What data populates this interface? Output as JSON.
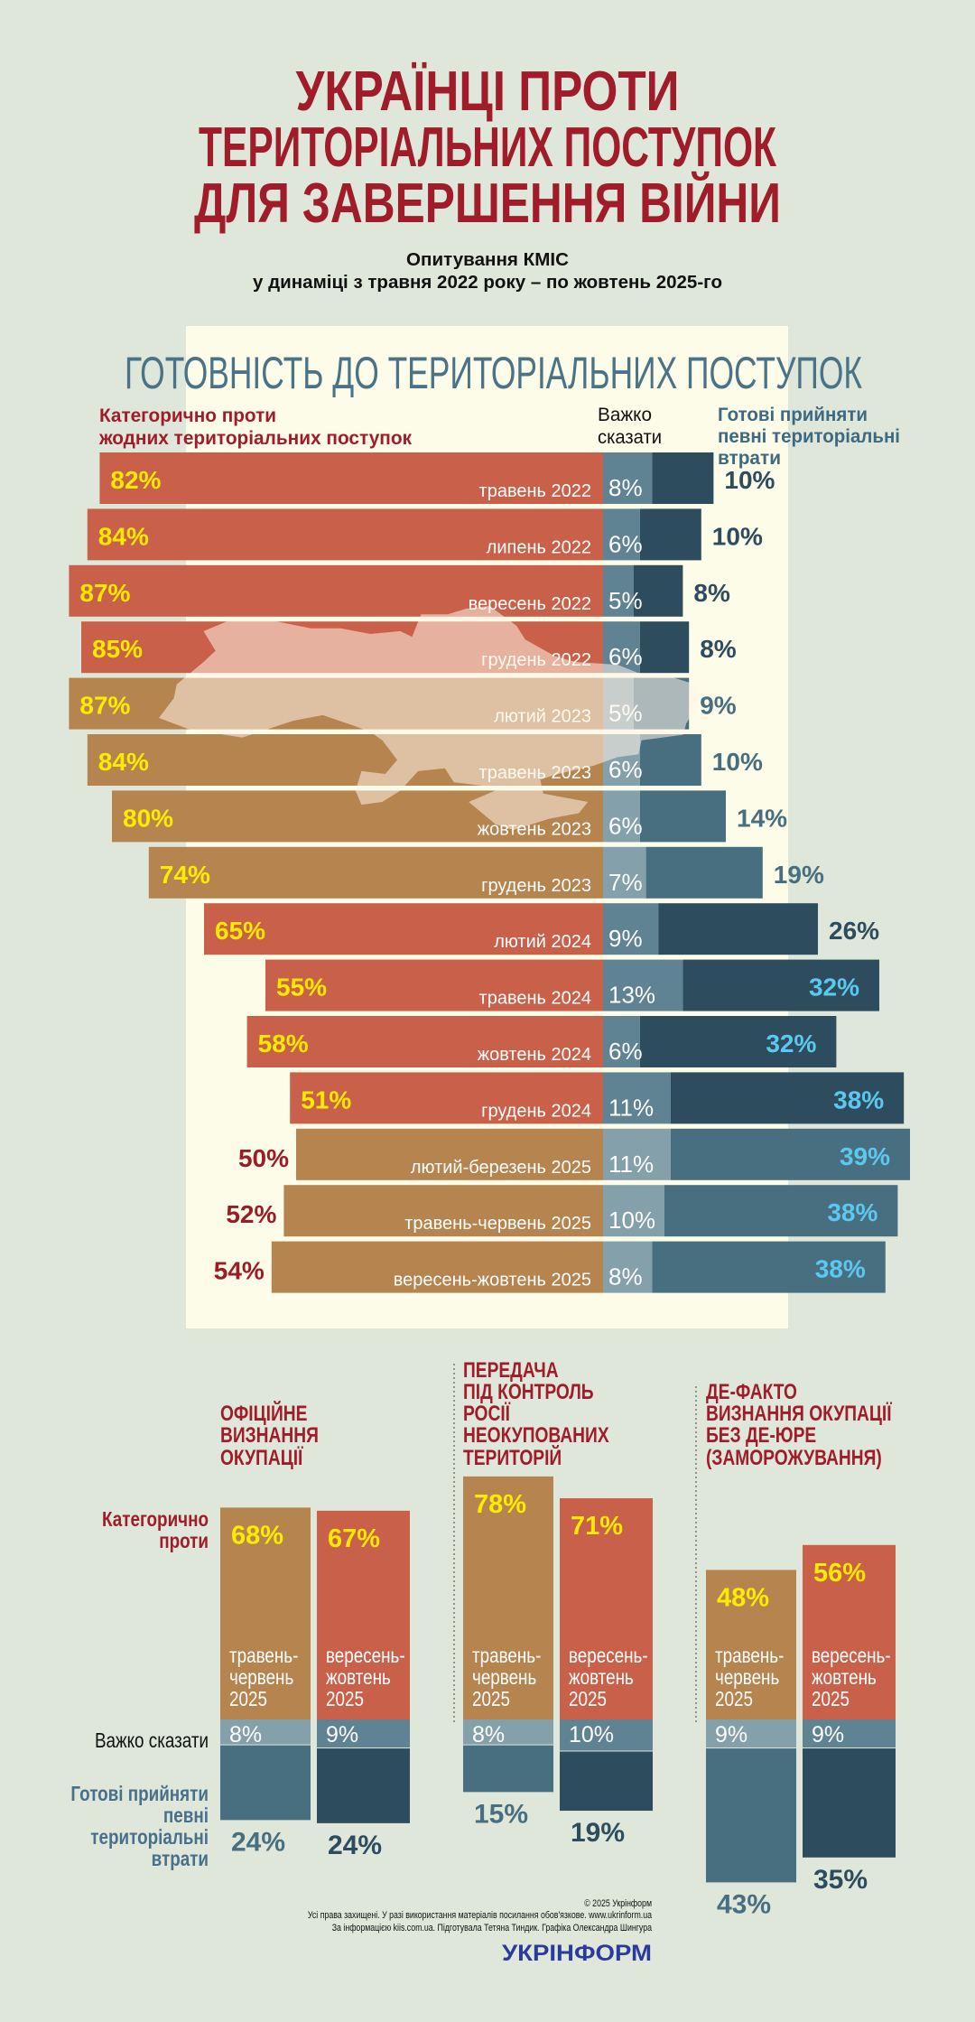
{
  "title": {
    "lines": [
      "УКРАЇНЦІ ПРОТИ",
      "ТЕРИТОРІАЛЬНИХ ПОСТУПОК",
      "ДЛЯ ЗАВЕРШЕННЯ ВІЙНИ"
    ]
  },
  "subtitle": {
    "lines": [
      "Опитування КМІС",
      "у динаміці  з травня 2022 року – по жовтень 2025-го"
    ]
  },
  "colors": {
    "background": "#dfe7da",
    "panel": "#fdfce9",
    "title_red": "#a11c2a",
    "heading_blue": "#4b7387",
    "against_a": "#c9614a",
    "against_b": "#b5844f",
    "hard_a": "#5f8393",
    "hard_b": "#84a0aa",
    "ready_a": "#2d4c5d",
    "ready_b": "#476f80",
    "pct_yellow": "#ffea00",
    "pct_inside_blue": "#5cc8f0",
    "ready_legend_blue": "#48708a",
    "logo_blue": "#2b3b9c"
  },
  "chart_data": [
    {
      "type": "bar",
      "orientation": "horizontal-stacked",
      "title": "ГОТОВНІСТЬ ДО ТЕРИТОРІАЛЬНИХ ПОСТУПОК",
      "unit": "%",
      "series_legend": [
        {
          "key": "against",
          "name_lines": [
            "Категорично проти",
            "жодних територіальних поступок"
          ]
        },
        {
          "key": "hard",
          "name_lines": [
            "Важко",
            "сказати"
          ]
        },
        {
          "key": "ready",
          "name_lines": [
            "Готові прийняти",
            "певні територіальні",
            "втрати"
          ]
        }
      ],
      "rows": [
        {
          "period": "травень 2022",
          "against": 82,
          "hard": 8,
          "ready": 10,
          "palette": "a"
        },
        {
          "period": "липень 2022",
          "against": 84,
          "hard": 6,
          "ready": 10,
          "palette": "a"
        },
        {
          "period": "вересень 2022",
          "against": 87,
          "hard": 5,
          "ready": 8,
          "palette": "a"
        },
        {
          "period": "грудень 2022",
          "against": 85,
          "hard": 6,
          "ready": 8,
          "palette": "a"
        },
        {
          "period": "лютий 2023",
          "against": 87,
          "hard": 5,
          "ready": 9,
          "palette": "b"
        },
        {
          "period": "травень 2023",
          "against": 84,
          "hard": 6,
          "ready": 10,
          "palette": "b"
        },
        {
          "period": "жовтень 2023",
          "against": 80,
          "hard": 6,
          "ready": 14,
          "palette": "b"
        },
        {
          "period": "грудень 2023",
          "against": 74,
          "hard": 7,
          "ready": 19,
          "palette": "b"
        },
        {
          "period": "лютий 2024",
          "against": 65,
          "hard": 9,
          "ready": 26,
          "palette": "a"
        },
        {
          "period": "травень 2024",
          "against": 55,
          "hard": 13,
          "ready": 32,
          "palette": "a"
        },
        {
          "period": "жовтень 2024",
          "against": 58,
          "hard": 6,
          "ready": 32,
          "palette": "a"
        },
        {
          "period": "грудень 2024",
          "against": 51,
          "hard": 11,
          "ready": 38,
          "palette": "a"
        },
        {
          "period": "лютий-березень 2025",
          "against": 50,
          "hard": 11,
          "ready": 39,
          "palette": "b"
        },
        {
          "period": "травень-червень 2025",
          "against": 52,
          "hard": 10,
          "ready": 38,
          "palette": "b"
        },
        {
          "period": "вересень-жовтень 2025",
          "against": 54,
          "hard": 8,
          "ready": 38,
          "palette": "b"
        }
      ]
    },
    {
      "type": "bar",
      "orientation": "vertical-stacked",
      "title_lines": [
        "ОФІЦІЙНЕ",
        "ВИЗНАННЯ",
        "ОКУПАЦІЇ"
      ],
      "bars": [
        {
          "period_lines": [
            "травень-",
            "червень",
            "2025"
          ],
          "against": 68,
          "hard": 8,
          "ready": 24,
          "palette": "b"
        },
        {
          "period_lines": [
            "вересень-",
            "жовтень",
            "2025"
          ],
          "against": 67,
          "hard": 9,
          "ready": 24,
          "palette": "a"
        }
      ]
    },
    {
      "type": "bar",
      "orientation": "vertical-stacked",
      "title_lines": [
        "ПЕРЕДАЧА",
        "ПІД КОНТРОЛЬ",
        "РОСІЇ",
        "НЕОКУПОВАНИХ",
        "ТЕРИТОРІЙ"
      ],
      "bars": [
        {
          "period_lines": [
            "травень-",
            "червень",
            "2025"
          ],
          "against": 78,
          "hard": 8,
          "ready": 15,
          "palette": "b"
        },
        {
          "period_lines": [
            "вересень-",
            "жовтень",
            "2025"
          ],
          "against": 71,
          "hard": 10,
          "ready": 19,
          "palette": "a"
        }
      ]
    },
    {
      "type": "bar",
      "orientation": "vertical-stacked",
      "title_lines": [
        "ДЕ-ФАКТО",
        "ВИЗНАННЯ ОКУПАЦІЇ",
        "БЕЗ ДЕ-ЮРЕ",
        "(ЗАМОРОЖУВАННЯ)"
      ],
      "bars": [
        {
          "period_lines": [
            "травень-",
            "червень",
            "2025"
          ],
          "against": 48,
          "hard": 9,
          "ready": 43,
          "palette": "b"
        },
        {
          "period_lines": [
            "вересень-",
            "жовтень",
            "2025"
          ],
          "against": 56,
          "hard": 9,
          "ready": 35,
          "palette": "a"
        }
      ]
    }
  ],
  "bottom_legend": {
    "against_lines": [
      "Категорично",
      "проти"
    ],
    "hard": "Важко сказати",
    "ready_lines": [
      "Готові прийняти",
      "певні",
      "територіальні",
      "втрати"
    ]
  },
  "credits": {
    "copyright": "© 2025 Укрінформ",
    "rights": "Усі права захищені. У разі використання матеріалів посилання обов'язкове. www.ukrinform.ua",
    "source": "За інформацією kiis.com.ua. Підготувала Тетяна Тиндик. Графіка Олександра Шингура",
    "logo": "УКРІНФОРМ"
  }
}
